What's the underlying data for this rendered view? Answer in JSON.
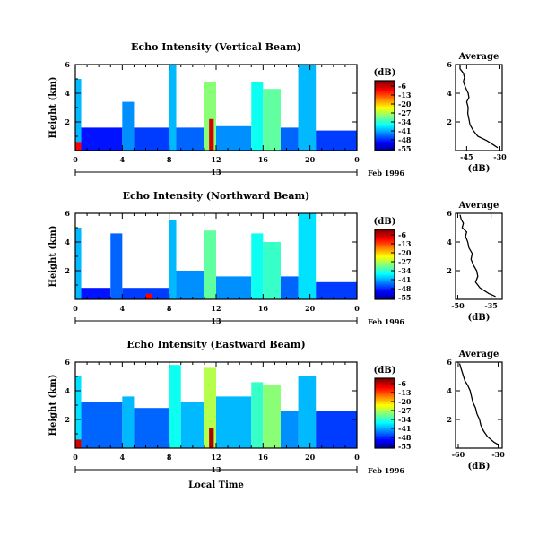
{
  "panels": [
    {
      "title": "Echo Intensity (Vertical Beam)",
      "ylabel": "Height (km)",
      "y_ticks": [
        "6",
        "4",
        "2"
      ],
      "x_ticks": [
        "0",
        "4",
        "8",
        "12",
        "16",
        "20",
        "0"
      ],
      "date_label": "Feb 1996",
      "day_label": "13",
      "colorbar": {
        "unit": "(dB)",
        "labels": [
          "-6",
          "-13",
          "-20",
          "-27",
          "-34",
          "-41",
          "-48",
          "-55"
        ]
      },
      "average": {
        "title": "Average",
        "xlabel": "(dB)",
        "x_ticks": [
          "-45",
          "-30"
        ],
        "y_ticks": [
          "6",
          "4",
          "2"
        ],
        "xlim": [
          -50,
          -29
        ],
        "ylim": [
          0,
          6
        ]
      }
    },
    {
      "title": "Echo Intensity (Northward Beam)",
      "ylabel": "Height (km)",
      "y_ticks": [
        "6",
        "4",
        "2"
      ],
      "x_ticks": [
        "0",
        "4",
        "8",
        "12",
        "16",
        "20",
        "0"
      ],
      "date_label": "Feb 1996",
      "day_label": "13",
      "colorbar": {
        "unit": "(dB)",
        "labels": [
          "-6",
          "-13",
          "-20",
          "-27",
          "-34",
          "-41",
          "-48",
          "-55"
        ]
      },
      "average": {
        "title": "Average",
        "xlabel": "(dB)",
        "x_ticks": [
          "-50",
          "-35"
        ],
        "y_ticks": [
          "6",
          "4",
          "2"
        ],
        "xlim": [
          -51,
          -30
        ],
        "ylim": [
          0,
          6
        ]
      }
    },
    {
      "title": "Echo Intensity (Eastward Beam)",
      "ylabel": "Height (km)",
      "y_ticks": [
        "6",
        "4",
        "2"
      ],
      "x_ticks": [
        "0",
        "4",
        "8",
        "12",
        "16",
        "20",
        "0"
      ],
      "date_label": "Feb 1996",
      "day_label": "13",
      "xlabel": "Local Time",
      "colorbar": {
        "unit": "(dB)",
        "labels": [
          "-6",
          "-13",
          "-20",
          "-27",
          "-34",
          "-41",
          "-48",
          "-55"
        ]
      },
      "average": {
        "title": "Average",
        "xlabel": "(dB)",
        "x_ticks": [
          "-60",
          "-30"
        ],
        "y_ticks": [
          "6",
          "4",
          "2"
        ],
        "xlim": [
          -62,
          -27
        ],
        "ylim": [
          0,
          6
        ]
      }
    }
  ],
  "chart_data": [
    {
      "type": "heatmap",
      "title": "Echo Intensity (Vertical Beam)",
      "ylabel": "Height (km)",
      "xlim": [
        0,
        24
      ],
      "ylim": [
        0,
        6
      ],
      "x_unit": "hour (local)",
      "colorscale": [
        -55,
        -6
      ],
      "cells": [
        {
          "x0": 0,
          "x1": 0.5,
          "y0": 0,
          "y1": 5.0,
          "v": -40
        },
        {
          "x0": 0,
          "x1": 0.5,
          "y0": 0,
          "y1": 0.6,
          "v": -12
        },
        {
          "x0": 0.5,
          "x1": 4,
          "y0": 0,
          "y1": 1.6,
          "v": -48
        },
        {
          "x0": 4,
          "x1": 5,
          "y0": 0,
          "y1": 3.4,
          "v": -42
        },
        {
          "x0": 5,
          "x1": 8,
          "y0": 0,
          "y1": 1.6,
          "v": -46
        },
        {
          "x0": 8,
          "x1": 8.6,
          "y0": 0,
          "y1": 6.0,
          "v": -40
        },
        {
          "x0": 8.6,
          "x1": 11,
          "y0": 0,
          "y1": 1.6,
          "v": -44
        },
        {
          "x0": 11,
          "x1": 12,
          "y0": 0,
          "y1": 4.8,
          "v": -30
        },
        {
          "x0": 11.4,
          "x1": 11.8,
          "y0": 0,
          "y1": 2.2,
          "v": -10
        },
        {
          "x0": 12,
          "x1": 15,
          "y0": 0,
          "y1": 1.7,
          "v": -42
        },
        {
          "x0": 15,
          "x1": 16,
          "y0": 0,
          "y1": 4.8,
          "v": -36
        },
        {
          "x0": 16,
          "x1": 17.5,
          "y0": 0,
          "y1": 4.3,
          "v": -32
        },
        {
          "x0": 17.5,
          "x1": 19,
          "y0": 0,
          "y1": 1.6,
          "v": -44
        },
        {
          "x0": 19,
          "x1": 20.5,
          "y0": 0,
          "y1": 6.0,
          "v": -40
        },
        {
          "x0": 20.5,
          "x1": 24,
          "y0": 0,
          "y1": 1.4,
          "v": -46
        }
      ]
    },
    {
      "type": "heatmap",
      "title": "Echo Intensity (Northward Beam)",
      "ylabel": "Height (km)",
      "xlim": [
        0,
        24
      ],
      "ylim": [
        0,
        6
      ],
      "x_unit": "hour (local)",
      "colorscale": [
        -55,
        -6
      ],
      "cells": [
        {
          "x0": 0,
          "x1": 0.5,
          "y0": 0,
          "y1": 5.0,
          "v": -40
        },
        {
          "x0": 0.5,
          "x1": 3,
          "y0": 0,
          "y1": 0.8,
          "v": -48
        },
        {
          "x0": 3,
          "x1": 4,
          "y0": 0,
          "y1": 4.6,
          "v": -44
        },
        {
          "x0": 4,
          "x1": 8,
          "y0": 0,
          "y1": 0.8,
          "v": -46
        },
        {
          "x0": 6,
          "x1": 6.5,
          "y0": 0,
          "y1": 0.4,
          "v": -12
        },
        {
          "x0": 8,
          "x1": 8.6,
          "y0": 0,
          "y1": 5.5,
          "v": -40
        },
        {
          "x0": 8.6,
          "x1": 11,
          "y0": 0,
          "y1": 2.0,
          "v": -42
        },
        {
          "x0": 11,
          "x1": 12,
          "y0": 0,
          "y1": 4.8,
          "v": -32
        },
        {
          "x0": 12,
          "x1": 15,
          "y0": 0,
          "y1": 1.6,
          "v": -42
        },
        {
          "x0": 15,
          "x1": 16,
          "y0": 0,
          "y1": 4.6,
          "v": -36
        },
        {
          "x0": 16,
          "x1": 17.5,
          "y0": 0,
          "y1": 4.0,
          "v": -34
        },
        {
          "x0": 17.5,
          "x1": 19,
          "y0": 0,
          "y1": 1.6,
          "v": -44
        },
        {
          "x0": 19,
          "x1": 20.5,
          "y0": 0,
          "y1": 6.0,
          "v": -38
        },
        {
          "x0": 20.5,
          "x1": 24,
          "y0": 0,
          "y1": 1.2,
          "v": -46
        }
      ]
    },
    {
      "type": "heatmap",
      "title": "Echo Intensity (Eastward Beam)",
      "ylabel": "Height (km)",
      "xlabel": "Local Time",
      "xlim": [
        0,
        24
      ],
      "ylim": [
        0,
        6
      ],
      "x_unit": "hour (local)",
      "colorscale": [
        -55,
        -6
      ],
      "cells": [
        {
          "x0": 0,
          "x1": 0.5,
          "y0": 0,
          "y1": 5.0,
          "v": -38
        },
        {
          "x0": 0,
          "x1": 0.5,
          "y0": 0,
          "y1": 0.6,
          "v": -10
        },
        {
          "x0": 0.5,
          "x1": 4,
          "y0": 0,
          "y1": 3.2,
          "v": -44
        },
        {
          "x0": 4,
          "x1": 5,
          "y0": 0,
          "y1": 3.6,
          "v": -40
        },
        {
          "x0": 5,
          "x1": 8,
          "y0": 0,
          "y1": 2.8,
          "v": -44
        },
        {
          "x0": 8,
          "x1": 9,
          "y0": 0,
          "y1": 5.8,
          "v": -36
        },
        {
          "x0": 9,
          "x1": 11,
          "y0": 0,
          "y1": 3.2,
          "v": -40
        },
        {
          "x0": 11,
          "x1": 12,
          "y0": 0,
          "y1": 5.6,
          "v": -28
        },
        {
          "x0": 11.4,
          "x1": 11.8,
          "y0": 0,
          "y1": 1.4,
          "v": -8
        },
        {
          "x0": 12,
          "x1": 15,
          "y0": 0,
          "y1": 3.6,
          "v": -40
        },
        {
          "x0": 15,
          "x1": 16,
          "y0": 0,
          "y1": 4.6,
          "v": -34
        },
        {
          "x0": 16,
          "x1": 17.5,
          "y0": 0,
          "y1": 4.4,
          "v": -30
        },
        {
          "x0": 17.5,
          "x1": 19,
          "y0": 0,
          "y1": 2.6,
          "v": -42
        },
        {
          "x0": 19,
          "x1": 20.5,
          "y0": 0,
          "y1": 5.0,
          "v": -40
        },
        {
          "x0": 20.5,
          "x1": 24,
          "y0": 0,
          "y1": 2.6,
          "v": -46
        }
      ]
    },
    {
      "type": "line",
      "title": "Average",
      "xlabel": "(dB)",
      "xlim": [
        -50,
        -29
      ],
      "ylim": [
        0,
        6
      ],
      "x": [
        -31,
        -33,
        -36,
        -40,
        -42,
        -43.5,
        -44,
        -44.5,
        -44.3,
        -45,
        -44,
        -44.3,
        -45.5,
        -46.5,
        -46,
        -46.5,
        -48,
        -48
      ],
      "y": [
        0.2,
        0.4,
        0.7,
        1.0,
        1.4,
        1.8,
        2.2,
        2.6,
        3.0,
        3.4,
        3.7,
        4.0,
        4.4,
        4.8,
        5.1,
        5.4,
        5.7,
        6.0
      ]
    },
    {
      "type": "line",
      "title": "Average",
      "xlabel": "(dB)",
      "xlim": [
        -51,
        -30
      ],
      "ylim": [
        0,
        6
      ],
      "x": [
        -33,
        -36,
        -40,
        -42,
        -41,
        -41.5,
        -43,
        -44,
        -43.5,
        -45,
        -45.5,
        -46.5,
        -46,
        -48,
        -47.5,
        -48.5,
        -49
      ],
      "y": [
        0.2,
        0.4,
        0.8,
        1.2,
        1.6,
        2.0,
        2.4,
        2.8,
        3.2,
        3.6,
        4.0,
        4.4,
        4.7,
        5.0,
        5.3,
        5.6,
        5.9
      ]
    },
    {
      "type": "line",
      "title": "Average",
      "xlabel": "(dB)",
      "xlim": [
        -62,
        -27
      ],
      "ylim": [
        0,
        6
      ],
      "x": [
        -29,
        -33,
        -38,
        -41,
        -43,
        -44,
        -46,
        -47,
        -49,
        -50,
        -51,
        -53,
        -55,
        -56,
        -57,
        -58,
        -59
      ],
      "y": [
        0.2,
        0.4,
        0.8,
        1.2,
        1.6,
        2.0,
        2.4,
        2.8,
        3.2,
        3.6,
        4.0,
        4.4,
        4.7,
        5.0,
        5.3,
        5.6,
        5.9
      ]
    }
  ]
}
